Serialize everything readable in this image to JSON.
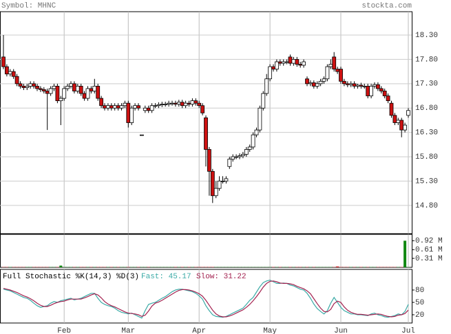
{
  "header": {
    "symbol": "Symbol: MHNC",
    "site": "stockta.com"
  },
  "chart_data": [
    {
      "type": "candlestick",
      "up_color": "#ffffff",
      "down_color": "#cc1111",
      "grid": true,
      "ylim": [
        14.22,
        18.78
      ],
      "yticks": [
        {
          "value": 14.8,
          "label": "14.80"
        },
        {
          "value": 15.3,
          "label": "15.30"
        },
        {
          "value": 15.8,
          "label": "15.80"
        },
        {
          "value": 16.3,
          "label": "16.30"
        },
        {
          "value": 16.8,
          "label": "16.80"
        },
        {
          "value": 17.3,
          "label": "17.30"
        },
        {
          "value": 17.8,
          "label": "17.80"
        },
        {
          "value": 18.3,
          "label": "18.30"
        }
      ],
      "open": [
        17.85,
        17.65,
        17.5,
        17.55,
        17.45,
        17.3,
        17.25,
        17.22,
        17.25,
        17.3,
        17.25,
        17.2,
        17.18,
        17.15,
        17.1,
        17.2,
        17.25,
        16.95,
        17.0,
        17.2,
        17.25,
        17.3,
        17.15,
        17.25,
        17.1,
        17.0,
        17.2,
        17.15,
        17.25,
        17.0,
        16.85,
        16.8,
        16.85,
        16.8,
        16.85,
        16.8,
        16.85,
        16.9,
        16.5,
        16.8,
        16.85,
        16.25,
        16.75,
        16.8,
        16.75,
        16.85,
        16.85,
        16.87,
        16.88,
        16.88,
        16.9,
        16.9,
        16.88,
        16.92,
        16.85,
        16.9,
        16.88,
        16.95,
        16.9,
        16.85,
        16.6,
        15.95,
        15.5,
        15.0,
        15.15,
        15.3,
        15.3,
        15.6,
        15.75,
        15.8,
        15.8,
        15.82,
        15.85,
        15.95,
        16.0,
        16.25,
        16.35,
        16.8,
        17.1,
        17.4,
        17.65,
        17.6,
        17.75,
        17.72,
        17.75,
        17.85,
        17.72,
        17.8,
        17.7,
        17.68,
        17.4,
        17.3,
        17.32,
        17.25,
        17.3,
        17.35,
        17.4,
        17.65,
        17.85,
        17.6,
        17.6,
        17.35,
        17.3,
        17.28,
        17.3,
        17.25,
        17.27,
        17.25,
        17.25,
        17.05,
        17.25,
        17.28,
        17.2,
        17.15,
        17.05,
        16.9,
        16.65,
        16.5,
        16.55,
        16.35,
        16.65
      ],
      "high": [
        18.3,
        17.7,
        17.6,
        17.6,
        17.5,
        17.35,
        17.3,
        17.3,
        17.35,
        17.35,
        17.3,
        17.25,
        17.23,
        17.2,
        17.25,
        17.3,
        17.3,
        17.05,
        17.25,
        17.3,
        17.35,
        17.35,
        17.3,
        17.3,
        17.15,
        17.25,
        17.25,
        17.4,
        17.3,
        17.05,
        16.9,
        16.9,
        16.9,
        16.9,
        16.9,
        16.9,
        16.95,
        16.95,
        16.85,
        16.9,
        16.9,
        16.25,
        16.85,
        16.85,
        16.9,
        16.9,
        16.92,
        16.93,
        16.93,
        16.95,
        16.95,
        16.95,
        16.97,
        16.97,
        16.95,
        16.95,
        17.0,
        17.0,
        16.95,
        16.9,
        16.65,
        16.0,
        15.55,
        15.3,
        15.4,
        15.4,
        15.4,
        15.8,
        15.85,
        15.85,
        15.87,
        15.9,
        16.0,
        16.05,
        16.3,
        16.4,
        16.85,
        17.15,
        17.5,
        17.7,
        17.7,
        17.8,
        17.8,
        17.8,
        17.8,
        17.9,
        17.85,
        17.85,
        17.75,
        17.8,
        17.45,
        17.37,
        17.37,
        17.35,
        17.4,
        17.45,
        17.7,
        17.8,
        17.95,
        17.65,
        17.65,
        17.4,
        17.35,
        17.35,
        17.35,
        17.3,
        17.32,
        17.3,
        17.3,
        17.3,
        17.33,
        17.33,
        17.25,
        17.2,
        17.1,
        16.95,
        16.7,
        16.6,
        16.6,
        16.5,
        16.8
      ],
      "low": [
        17.6,
        17.45,
        17.45,
        17.4,
        17.25,
        17.2,
        17.17,
        17.17,
        17.2,
        17.2,
        17.15,
        17.13,
        17.1,
        16.35,
        17.05,
        17.15,
        16.9,
        16.45,
        16.95,
        17.15,
        17.2,
        17.1,
        17.1,
        17.05,
        16.95,
        16.95,
        17.1,
        17.1,
        16.95,
        16.8,
        16.75,
        16.75,
        16.75,
        16.75,
        16.75,
        16.75,
        16.8,
        16.4,
        16.45,
        16.75,
        16.75,
        16.25,
        16.7,
        16.7,
        16.7,
        16.8,
        16.8,
        16.82,
        16.83,
        16.83,
        16.85,
        16.83,
        16.83,
        16.8,
        16.8,
        16.83,
        16.83,
        16.85,
        16.8,
        16.65,
        15.6,
        15.0,
        14.85,
        14.95,
        15.1,
        15.25,
        15.25,
        15.55,
        15.7,
        15.75,
        15.75,
        15.77,
        15.8,
        15.9,
        15.95,
        16.2,
        16.3,
        16.75,
        17.05,
        17.35,
        17.55,
        17.55,
        17.67,
        17.67,
        17.7,
        17.67,
        17.67,
        17.65,
        17.63,
        17.63,
        17.25,
        17.25,
        17.2,
        17.2,
        17.25,
        17.3,
        17.35,
        17.6,
        17.55,
        17.5,
        17.3,
        17.25,
        17.23,
        17.23,
        17.2,
        17.2,
        17.2,
        17.2,
        17.0,
        17.0,
        17.2,
        17.15,
        17.1,
        17.0,
        16.9,
        16.6,
        16.45,
        16.45,
        16.2,
        16.3,
        16.6
      ],
      "close": [
        17.65,
        17.5,
        17.55,
        17.45,
        17.3,
        17.25,
        17.22,
        17.25,
        17.3,
        17.25,
        17.2,
        17.18,
        17.15,
        17.1,
        17.2,
        17.25,
        16.95,
        17.0,
        17.2,
        17.25,
        17.3,
        17.15,
        17.25,
        17.1,
        17.0,
        17.2,
        17.15,
        17.25,
        17.0,
        16.85,
        16.8,
        16.85,
        16.8,
        16.85,
        16.8,
        16.85,
        16.9,
        16.5,
        16.8,
        16.85,
        16.8,
        16.25,
        16.8,
        16.75,
        16.85,
        16.85,
        16.87,
        16.88,
        16.88,
        16.9,
        16.9,
        16.88,
        16.92,
        16.85,
        16.9,
        16.88,
        16.95,
        16.9,
        16.85,
        16.7,
        15.95,
        15.5,
        15.0,
        15.15,
        15.3,
        15.3,
        15.35,
        15.75,
        15.8,
        15.8,
        15.82,
        15.85,
        15.95,
        16.0,
        16.25,
        16.35,
        16.8,
        17.1,
        17.4,
        17.65,
        17.6,
        17.75,
        17.72,
        17.75,
        17.75,
        17.72,
        17.8,
        17.7,
        17.68,
        17.75,
        17.3,
        17.32,
        17.25,
        17.3,
        17.35,
        17.4,
        17.65,
        17.7,
        17.6,
        17.55,
        17.35,
        17.3,
        17.28,
        17.3,
        17.25,
        17.27,
        17.25,
        17.25,
        17.05,
        17.25,
        17.28,
        17.2,
        17.15,
        17.05,
        16.95,
        16.65,
        16.5,
        16.55,
        16.35,
        16.45,
        16.75
      ]
    },
    {
      "type": "volume",
      "up_color": "#118811",
      "down_color": "#cc1111",
      "ylim": [
        0,
        1.14
      ],
      "yticks": [
        {
          "value": 0.31,
          "label": "0.31 M"
        },
        {
          "value": 0.61,
          "label": "0.61 M"
        },
        {
          "value": 0.92,
          "label": "0.92 M"
        }
      ],
      "values": [
        0.01,
        0.01,
        0.01,
        0.01,
        0.01,
        0.01,
        0.01,
        0.01,
        0.01,
        0.01,
        0.01,
        0.01,
        0.01,
        0.01,
        0.01,
        0.01,
        0.01,
        0.06,
        0.01,
        0.01,
        0.01,
        0.01,
        0.01,
        0.01,
        0.01,
        0.01,
        0.01,
        0.01,
        0.01,
        0.01,
        0.01,
        0.01,
        0.01,
        0.01,
        0.01,
        0.01,
        0.01,
        0.01,
        0.01,
        0.01,
        0.01,
        0.01,
        0.01,
        0.01,
        0.01,
        0.01,
        0.01,
        0.01,
        0.01,
        0.01,
        0.01,
        0.01,
        0.01,
        0.01,
        0.01,
        0.01,
        0.01,
        0.01,
        0.01,
        0.01,
        0.01,
        0.01,
        0.01,
        0.01,
        0.01,
        0.01,
        0.01,
        0.01,
        0.01,
        0.01,
        0.01,
        0.01,
        0.01,
        0.01,
        0.01,
        0.01,
        0.01,
        0.01,
        0.01,
        0.01,
        0.01,
        0.01,
        0.01,
        0.01,
        0.01,
        0.01,
        0.01,
        0.01,
        0.01,
        0.01,
        0.01,
        0.01,
        0.01,
        0.01,
        0.01,
        0.01,
        0.01,
        0.01,
        0.01,
        0.03,
        0.01,
        0.01,
        0.01,
        0.01,
        0.01,
        0.01,
        0.01,
        0.01,
        0.01,
        0.01,
        0.01,
        0.01,
        0.01,
        0.01,
        0.01,
        0.01,
        0.01,
        0.01,
        0.01,
        0.92,
        0.01
      ]
    },
    {
      "type": "line",
      "title": "Full Stochastic %K(14,3) %D(3)",
      "ylim": [
        0,
        130
      ],
      "yticks": [
        20,
        50,
        80
      ],
      "categories": [
        null,
        null,
        null,
        null,
        null,
        null,
        null,
        null,
        null,
        null,
        null,
        null,
        null,
        null,
        null,
        null,
        null,
        null,
        "Feb",
        null,
        null,
        null,
        null,
        null,
        null,
        null,
        null,
        null,
        null,
        null,
        null,
        null,
        null,
        null,
        null,
        null,
        null,
        "Mar",
        null,
        null,
        null,
        null,
        null,
        null,
        null,
        null,
        null,
        null,
        null,
        null,
        null,
        null,
        null,
        null,
        null,
        null,
        null,
        null,
        "Apr",
        null,
        null,
        null,
        null,
        null,
        null,
        null,
        null,
        null,
        null,
        null,
        null,
        null,
        null,
        null,
        null,
        null,
        null,
        null,
        null,
        "May",
        null,
        null,
        null,
        null,
        null,
        null,
        null,
        null,
        null,
        null,
        null,
        null,
        null,
        null,
        null,
        null,
        null,
        null,
        null,
        null,
        "Jun",
        null,
        null,
        null,
        null,
        null,
        null,
        null,
        null,
        null,
        null,
        null,
        null,
        null,
        null,
        null,
        null,
        null,
        null,
        null,
        "Jul"
      ],
      "series": [
        {
          "name": "Fast: 45.17",
          "color": "#3aaaa6",
          "values": [
            82,
            80,
            78,
            74,
            70,
            66,
            62,
            60,
            55,
            48,
            42,
            38,
            40,
            42,
            48,
            52,
            50,
            54,
            56,
            58,
            60,
            56,
            58,
            60,
            64,
            68,
            72,
            72,
            60,
            50,
            45,
            42,
            40,
            36,
            30,
            26,
            24,
            22,
            24,
            20,
            16,
            12,
            30,
            45,
            48,
            50,
            55,
            60,
            64,
            70,
            76,
            80,
            82,
            82,
            80,
            78,
            76,
            72,
            66,
            58,
            42,
            30,
            20,
            16,
            15,
            14,
            16,
            20,
            24,
            28,
            32,
            36,
            45,
            55,
            62,
            75,
            88,
            98,
            102,
            104,
            100,
            96,
            96,
            97,
            96,
            92,
            90,
            86,
            82,
            80,
            72,
            60,
            46,
            35,
            28,
            22,
            30,
            48,
            62,
            50,
            38,
            30,
            26,
            22,
            22,
            20,
            20,
            19,
            18,
            22,
            24,
            20,
            18,
            15,
            14,
            16,
            18,
            22,
            20,
            28,
            45.17
          ]
        },
        {
          "name": "Slow: 31.22",
          "color": "#a3214f",
          "values": [
            84,
            82,
            80,
            77,
            74,
            70,
            66,
            63,
            59,
            54,
            48,
            43,
            40,
            40,
            43,
            47,
            50,
            52,
            53,
            56,
            58,
            58,
            58,
            58,
            61,
            64,
            68,
            71,
            68,
            61,
            52,
            46,
            42,
            39,
            35,
            31,
            27,
            24,
            23,
            22,
            20,
            16,
            19,
            29,
            41,
            48,
            51,
            55,
            60,
            65,
            70,
            75,
            79,
            81,
            81,
            80,
            78,
            75,
            71,
            65,
            55,
            43,
            31,
            22,
            17,
            15,
            15,
            17,
            20,
            24,
            28,
            32,
            38,
            45,
            54,
            64,
            75,
            87,
            96,
            101,
            102,
            100,
            97,
            96,
            96,
            95,
            93,
            89,
            86,
            83,
            78,
            71,
            59,
            47,
            36,
            28,
            27,
            33,
            47,
            53,
            50,
            39,
            31,
            26,
            23,
            21,
            21,
            20,
            19,
            20,
            21,
            22,
            21,
            18,
            16,
            15,
            16,
            19,
            20,
            23,
            31.22
          ]
        }
      ]
    }
  ]
}
